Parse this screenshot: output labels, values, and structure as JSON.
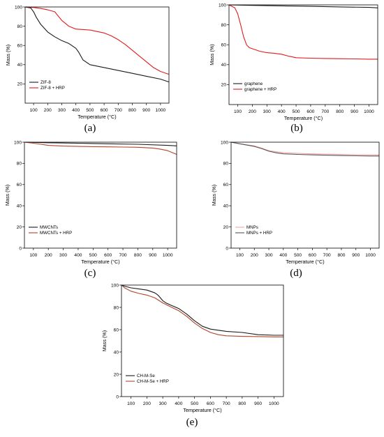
{
  "chart_data": [
    {
      "type": "line",
      "panel_label": "(a)",
      "xlabel": "Temperature (°C)",
      "ylabel": "Mass (%)",
      "xlim": [
        40,
        1060
      ],
      "ylim": [
        0,
        100
      ],
      "xticks": [
        100,
        200,
        300,
        400,
        500,
        600,
        700,
        800,
        900,
        1000
      ],
      "yticks": [
        20,
        40,
        60,
        80,
        100
      ],
      "legend_position": "lower-left",
      "series": [
        {
          "name": "ZIF-8",
          "color": "#1a1a1a",
          "x": [
            40,
            80,
            100,
            120,
            150,
            200,
            250,
            300,
            350,
            380,
            400,
            420,
            450,
            500,
            600,
            700,
            800,
            900,
            1000,
            1060
          ],
          "y": [
            100,
            99,
            95,
            89,
            82,
            74,
            69,
            65,
            62,
            59,
            57,
            53,
            45,
            40,
            37,
            34,
            31,
            28,
            25,
            22
          ]
        },
        {
          "name": "ZIF-8 + HRP",
          "color": "#e31a1c",
          "x": [
            40,
            100,
            150,
            200,
            250,
            300,
            350,
            400,
            500,
            600,
            650,
            700,
            750,
            800,
            850,
            900,
            950,
            1000,
            1060
          ],
          "y": [
            100,
            99.5,
            98.5,
            97,
            95,
            86,
            80,
            77,
            76,
            73,
            70,
            66,
            61,
            55,
            49,
            43,
            37,
            33,
            30
          ]
        }
      ]
    },
    {
      "type": "line",
      "panel_label": "(b)",
      "xlabel": "Temperature (°C)",
      "ylabel": "Mass (%)",
      "xlim": [
        40,
        1060
      ],
      "ylim": [
        0,
        100
      ],
      "xticks": [
        100,
        200,
        300,
        400,
        500,
        600,
        700,
        800,
        900,
        1000
      ],
      "yticks": [
        20,
        40,
        60,
        80,
        100
      ],
      "legend_position": "lower-left",
      "series": [
        {
          "name": "graphene",
          "color": "#1a1a1a",
          "x": [
            40,
            200,
            400,
            600,
            800,
            1000,
            1060
          ],
          "y": [
            100,
            99.5,
            99,
            98.5,
            98,
            97.5,
            97
          ]
        },
        {
          "name": "graphene + HRP",
          "color": "#e31a1c",
          "x": [
            40,
            80,
            100,
            120,
            140,
            160,
            180,
            200,
            250,
            300,
            350,
            400,
            450,
            500,
            600,
            700,
            800,
            900,
            1000,
            1060
          ],
          "y": [
            100,
            97,
            91,
            80,
            68,
            60,
            57,
            56,
            53.5,
            52,
            51.5,
            50.5,
            48.5,
            47,
            46.5,
            46.2,
            46,
            45.8,
            45.5,
            45.5
          ]
        }
      ]
    },
    {
      "type": "line",
      "panel_label": "(c)",
      "xlabel": "Temperature (°C)",
      "ylabel": "Mass (%)",
      "xlim": [
        40,
        1060
      ],
      "ylim": [
        0,
        100
      ],
      "xticks": [
        100,
        200,
        300,
        400,
        500,
        600,
        700,
        800,
        900,
        1000
      ],
      "yticks": [
        0,
        20,
        40,
        60,
        80,
        100
      ],
      "legend_position": "lower-left",
      "series": [
        {
          "name": "MWCNTs",
          "color": "#1a1a1a",
          "x": [
            40,
            200,
            400,
            600,
            800,
            1000,
            1060
          ],
          "y": [
            100,
            99.5,
            99,
            98.5,
            98,
            97,
            96.5
          ]
        },
        {
          "name": "MWCNTs + HRP",
          "color": "#b0452a",
          "x": [
            40,
            100,
            150,
            200,
            300,
            400,
            500,
            600,
            700,
            800,
            900,
            950,
            1000,
            1060
          ],
          "y": [
            100,
            99,
            98,
            97,
            96.3,
            96,
            95.8,
            95.6,
            95.4,
            95.2,
            94.5,
            93.5,
            92,
            88.5
          ]
        }
      ]
    },
    {
      "type": "line",
      "panel_label": "(d)",
      "xlabel": "Temperature (°C)",
      "ylabel": "Mass (%)",
      "xlim": [
        40,
        1060
      ],
      "ylim": [
        0,
        100
      ],
      "xticks": [
        100,
        200,
        300,
        400,
        500,
        600,
        700,
        800,
        900,
        1000
      ],
      "yticks": [
        0,
        20,
        40,
        60,
        80,
        100
      ],
      "legend_position": "lower-left",
      "series": [
        {
          "name": "MNPs",
          "color": "#f4a6a6",
          "x": [
            40,
            100,
            200,
            250,
            300,
            350,
            400,
            500,
            600,
            700,
            800,
            900,
            1000,
            1060
          ],
          "y": [
            100,
            98.5,
            96.5,
            94.5,
            92,
            91,
            90.2,
            89.5,
            89,
            88.7,
            88.4,
            88.2,
            88,
            88
          ]
        },
        {
          "name": "MNPs + HRP",
          "color": "#555555",
          "x": [
            40,
            100,
            200,
            250,
            300,
            350,
            400,
            500,
            600,
            700,
            800,
            900,
            1000,
            1060
          ],
          "y": [
            100,
            98.5,
            96,
            94,
            91.5,
            90,
            89,
            88.5,
            88,
            87.7,
            87.4,
            87.2,
            87,
            87
          ]
        }
      ]
    },
    {
      "type": "line",
      "panel_label": "(e)",
      "xlabel": "Temperature (°C)",
      "ylabel": "Mass (%)",
      "xlim": [
        40,
        1060
      ],
      "ylim": [
        0,
        100
      ],
      "xticks": [
        100,
        200,
        300,
        400,
        500,
        600,
        700,
        800,
        900,
        1000
      ],
      "yticks": [
        0,
        20,
        40,
        60,
        80,
        100
      ],
      "legend_position": "lower-left",
      "series": [
        {
          "name": "CH-M-Se",
          "color": "#1a1a1a",
          "x": [
            40,
            60,
            100,
            150,
            200,
            250,
            270,
            300,
            320,
            350,
            400,
            450,
            500,
            550,
            600,
            650,
            700,
            800,
            900,
            1000,
            1060
          ],
          "y": [
            100,
            99,
            97.5,
            96.5,
            95.5,
            93,
            91,
            86,
            84,
            82,
            79,
            74,
            68,
            63,
            60.5,
            59.5,
            58.5,
            57.5,
            55.5,
            55,
            55
          ]
        },
        {
          "name": "CH-M-Se + HRP",
          "color": "#b0452a",
          "x": [
            40,
            60,
            100,
            150,
            200,
            250,
            300,
            350,
            400,
            450,
            500,
            550,
            580,
            600,
            650,
            700,
            800,
            900,
            1000,
            1060
          ],
          "y": [
            100,
            97.5,
            94.5,
            92.5,
            91,
            88.5,
            84,
            80.5,
            77,
            72,
            66,
            61,
            59,
            57.5,
            55.5,
            54.5,
            54,
            53.8,
            53.5,
            53.5
          ]
        }
      ]
    }
  ]
}
